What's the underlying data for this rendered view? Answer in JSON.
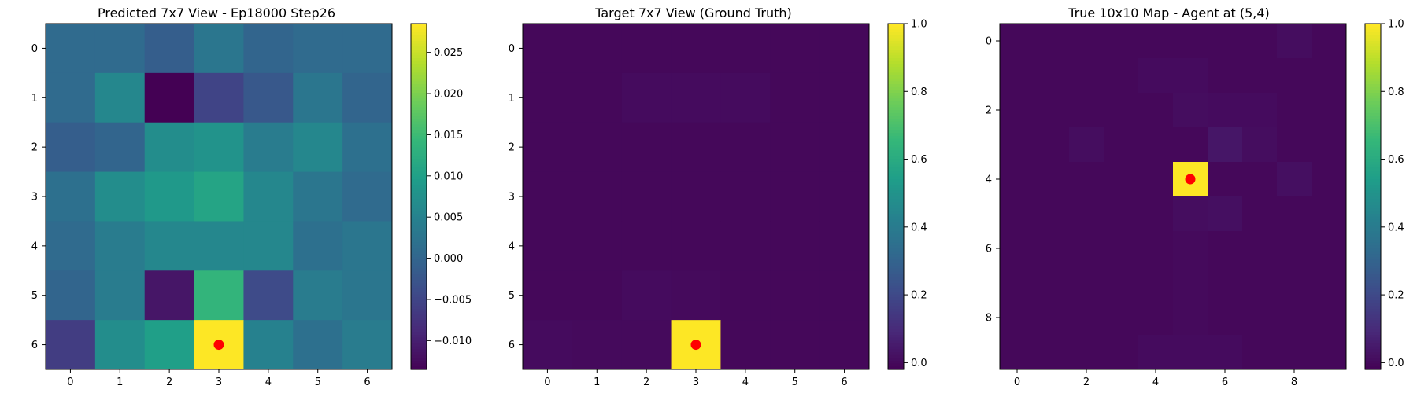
{
  "chart_data": [
    {
      "type": "heatmap",
      "title": "Predicted 7x7 View - Ep18000 Step26",
      "colormap": "viridis",
      "vmin": -0.0135,
      "vmax": 0.0285,
      "xticks": [
        "0",
        "1",
        "2",
        "3",
        "4",
        "5",
        "6"
      ],
      "yticks": [
        "0",
        "1",
        "2",
        "3",
        "4",
        "5",
        "6"
      ],
      "colorbar_ticks": [
        {
          "value": -0.01,
          "label": "−0.010"
        },
        {
          "value": -0.005,
          "label": "−0.005"
        },
        {
          "value": 0.0,
          "label": "0.000"
        },
        {
          "value": 0.005,
          "label": "0.005"
        },
        {
          "value": 0.01,
          "label": "0.010"
        },
        {
          "value": 0.015,
          "label": "0.015"
        },
        {
          "value": 0.02,
          "label": "0.020"
        },
        {
          "value": 0.025,
          "label": "0.025"
        }
      ],
      "values": [
        [
          0.001,
          0.001,
          -0.001,
          0.003,
          0.0,
          0.001,
          0.001
        ],
        [
          0.001,
          0.006,
          -0.0135,
          -0.005,
          -0.002,
          0.003,
          0.0
        ],
        [
          -0.001,
          0.0,
          0.007,
          0.008,
          0.004,
          0.006,
          0.002
        ],
        [
          0.002,
          0.007,
          0.009,
          0.011,
          0.006,
          0.003,
          0.001
        ],
        [
          0.001,
          0.004,
          0.006,
          0.006,
          0.006,
          0.002,
          0.003
        ],
        [
          0.0,
          0.004,
          -0.011,
          0.014,
          -0.004,
          0.004,
          0.003
        ],
        [
          -0.006,
          0.007,
          0.01,
          0.0285,
          0.005,
          0.002,
          0.004
        ]
      ],
      "marker": {
        "row": 6,
        "col": 3,
        "color": "#ff0000"
      }
    },
    {
      "type": "heatmap",
      "title": "Target 7x7 View (Ground Truth)",
      "colormap": "viridis",
      "vmin": -0.02,
      "vmax": 1.0,
      "xticks": [
        "0",
        "1",
        "2",
        "3",
        "4",
        "5",
        "6"
      ],
      "yticks": [
        "0",
        "1",
        "2",
        "3",
        "4",
        "5",
        "6"
      ],
      "colorbar_ticks": [
        {
          "value": 0.0,
          "label": "0.0"
        },
        {
          "value": 0.2,
          "label": "0.2"
        },
        {
          "value": 0.4,
          "label": "0.4"
        },
        {
          "value": 0.6,
          "label": "0.6"
        },
        {
          "value": 0.8,
          "label": "0.8"
        },
        {
          "value": 1.0,
          "label": "1.0"
        }
      ],
      "values": [
        [
          0.0,
          0.0,
          0.0,
          0.0,
          0.0,
          0.0,
          0.0
        ],
        [
          0.0,
          0.0,
          0.01,
          0.01,
          0.01,
          0.0,
          0.0
        ],
        [
          0.0,
          0.0,
          0.0,
          0.0,
          0.0,
          0.0,
          0.0
        ],
        [
          0.0,
          0.0,
          0.0,
          0.0,
          0.0,
          0.0,
          0.0
        ],
        [
          0.0,
          0.0,
          0.0,
          0.0,
          0.0,
          0.0,
          0.0
        ],
        [
          0.0,
          0.0,
          0.01,
          0.005,
          0.0,
          0.0,
          0.0
        ],
        [
          0.01,
          0.005,
          0.005,
          1.0,
          0.0,
          0.0,
          0.0
        ]
      ],
      "marker": {
        "row": 6,
        "col": 3,
        "color": "#ff0000"
      }
    },
    {
      "type": "heatmap",
      "title": "True 10x10 Map - Agent at (5,4)",
      "colormap": "viridis",
      "vmin": -0.02,
      "vmax": 1.0,
      "xticks": [
        "0",
        "2",
        "4",
        "6",
        "8"
      ],
      "xtick_positions": [
        0,
        2,
        4,
        6,
        8
      ],
      "yticks": [
        "0",
        "2",
        "4",
        "6",
        "8"
      ],
      "ytick_positions": [
        0,
        2,
        4,
        6,
        8
      ],
      "colorbar_ticks": [
        {
          "value": 0.0,
          "label": "0.0"
        },
        {
          "value": 0.2,
          "label": "0.2"
        },
        {
          "value": 0.4,
          "label": "0.4"
        },
        {
          "value": 0.6,
          "label": "0.6"
        },
        {
          "value": 0.8,
          "label": "0.8"
        },
        {
          "value": 1.0,
          "label": "1.0"
        }
      ],
      "values": [
        [
          0.0,
          0.0,
          0.0,
          0.0,
          0.0,
          0.0,
          0.0,
          0.0,
          0.015,
          0.0
        ],
        [
          0.0,
          0.0,
          0.0,
          0.0,
          0.01,
          0.01,
          0.0,
          0.0,
          0.0,
          0.0
        ],
        [
          0.0,
          0.0,
          0.0,
          0.0,
          0.0,
          0.015,
          0.01,
          0.01,
          0.0,
          0.0
        ],
        [
          0.0,
          0.0,
          0.015,
          0.0,
          0.0,
          0.0,
          0.04,
          0.015,
          0.0,
          0.0
        ],
        [
          0.0,
          0.0,
          0.0,
          0.0,
          0.0,
          1.0,
          0.0,
          0.0,
          0.02,
          0.0
        ],
        [
          0.0,
          0.0,
          0.0,
          0.0,
          0.0,
          0.015,
          0.02,
          0.0,
          0.0,
          0.0
        ],
        [
          0.0,
          0.0,
          0.0,
          0.0,
          0.0,
          0.005,
          0.0,
          0.0,
          0.0,
          0.0
        ],
        [
          0.0,
          0.0,
          0.0,
          0.0,
          0.0,
          0.005,
          0.0,
          0.0,
          0.0,
          0.0
        ],
        [
          0.0,
          0.0,
          0.0,
          0.0,
          0.0,
          0.005,
          0.0,
          0.0,
          0.0,
          0.0
        ],
        [
          0.0,
          0.0,
          0.0,
          0.0,
          0.01,
          0.01,
          0.01,
          0.0,
          0.0,
          0.0
        ]
      ],
      "marker": {
        "row": 4,
        "col": 5,
        "color": "#ff0000"
      }
    }
  ]
}
